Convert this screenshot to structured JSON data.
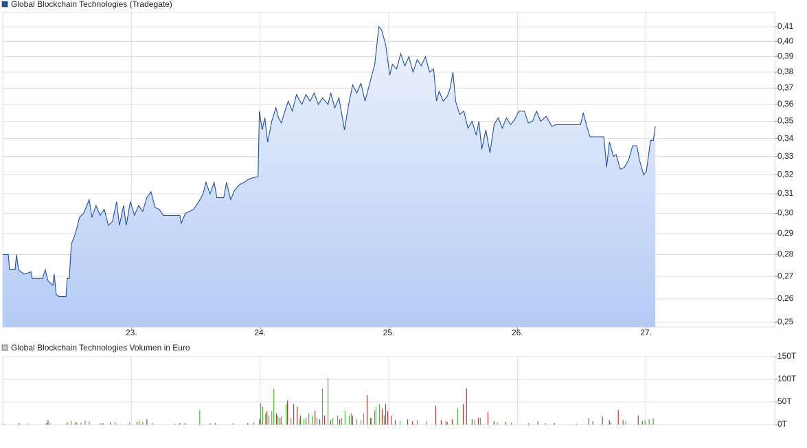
{
  "chart_data": [
    {
      "type": "line",
      "title": "Global Blockchain Technologies (Tradegate)",
      "log": true,
      "grid": true,
      "color": "#1f4fa8",
      "fill_top": "#eef3fd",
      "fill_bottom": "#b4cbf5",
      "xlim": [
        22,
        28
      ],
      "xticks": [
        {
          "value": 23,
          "label": "23."
        },
        {
          "value": 24,
          "label": "24."
        },
        {
          "value": 25,
          "label": "25."
        },
        {
          "value": 26,
          "label": "26."
        },
        {
          "value": 27,
          "label": "27."
        }
      ],
      "ylim": [
        0.248,
        0.42
      ],
      "yticks": [
        {
          "value": 0.25,
          "label": "0,25"
        },
        {
          "value": 0.26,
          "label": "0,26"
        },
        {
          "value": 0.27,
          "label": "0,27"
        },
        {
          "value": 0.28,
          "label": "0,28"
        },
        {
          "value": 0.29,
          "label": "0,29"
        },
        {
          "value": 0.3,
          "label": "0,30"
        },
        {
          "value": 0.31,
          "label": "0,31"
        },
        {
          "value": 0.32,
          "label": "0,32"
        },
        {
          "value": 0.33,
          "label": "0,33"
        },
        {
          "value": 0.34,
          "label": "0,34"
        },
        {
          "value": 0.35,
          "label": "0,35"
        },
        {
          "value": 0.36,
          "label": "0,36"
        },
        {
          "value": 0.37,
          "label": "0,37"
        },
        {
          "value": 0.38,
          "label": "0,38"
        },
        {
          "value": 0.39,
          "label": "0,39"
        },
        {
          "value": 0.4,
          "label": "0,40"
        },
        {
          "value": 0.41,
          "label": "0,41"
        }
      ],
      "series": [
        {
          "x": [
            22.0,
            22.043,
            22.053,
            22.096,
            22.107,
            22.123,
            22.165,
            22.219,
            22.229,
            22.309,
            22.331,
            22.352,
            22.389,
            22.4,
            22.416,
            22.437,
            22.491,
            22.501,
            22.517,
            22.533,
            22.565,
            22.597,
            22.629,
            22.672,
            22.693,
            22.725,
            22.757,
            22.789,
            22.821,
            22.853,
            22.885,
            22.907,
            22.939,
            22.96,
            22.992,
            23.024,
            23.056,
            23.088,
            23.12,
            23.152,
            23.184,
            23.216,
            23.248,
            23.312,
            23.376,
            23.387,
            23.419,
            23.451,
            23.483,
            23.525,
            23.557,
            23.579,
            23.611,
            23.643,
            23.664,
            23.717,
            23.739,
            23.771,
            23.803,
            23.845,
            23.877,
            23.92,
            23.984,
            23.995,
            24.016,
            24.037,
            24.059,
            24.091,
            24.123,
            24.144,
            24.165,
            24.197,
            24.219,
            24.251,
            24.283,
            24.325,
            24.357,
            24.389,
            24.421,
            24.453,
            24.485,
            24.528,
            24.549,
            24.581,
            24.613,
            24.656,
            24.688,
            24.72,
            24.752,
            24.784,
            24.816,
            24.859,
            24.891,
            24.923,
            24.944,
            24.976,
            25.008,
            25.029,
            25.061,
            25.093,
            25.125,
            25.157,
            25.189,
            25.221,
            25.253,
            25.285,
            25.317,
            25.349,
            25.371,
            25.392,
            25.424,
            25.456,
            25.477,
            25.499,
            25.52,
            25.552,
            25.584,
            25.616,
            25.648,
            25.68,
            25.701,
            25.723,
            25.755,
            25.787,
            25.819,
            25.851,
            25.883,
            25.915,
            25.947,
            25.979,
            26.011,
            26.053,
            26.085,
            26.117,
            26.149,
            26.181,
            26.224,
            26.267,
            26.299,
            26.491,
            26.512,
            26.544,
            26.565,
            26.672,
            26.693,
            26.715,
            26.747,
            26.768,
            26.8,
            26.832,
            26.864,
            26.896,
            26.928,
            26.949,
            26.981,
            27.003,
            27.035,
            27.056,
            27.072
          ],
          "values": [
            0.28,
            0.28,
            0.273,
            0.273,
            0.28,
            0.273,
            0.271,
            0.272,
            0.269,
            0.269,
            0.273,
            0.268,
            0.266,
            0.271,
            0.262,
            0.261,
            0.261,
            0.269,
            0.269,
            0.285,
            0.29,
            0.298,
            0.3,
            0.307,
            0.298,
            0.304,
            0.299,
            0.302,
            0.294,
            0.296,
            0.306,
            0.294,
            0.304,
            0.294,
            0.306,
            0.299,
            0.304,
            0.301,
            0.308,
            0.311,
            0.303,
            0.302,
            0.299,
            0.299,
            0.299,
            0.295,
            0.3,
            0.301,
            0.302,
            0.306,
            0.31,
            0.316,
            0.31,
            0.316,
            0.308,
            0.308,
            0.316,
            0.307,
            0.312,
            0.315,
            0.316,
            0.318,
            0.319,
            0.356,
            0.345,
            0.352,
            0.338,
            0.35,
            0.358,
            0.352,
            0.349,
            0.357,
            0.362,
            0.356,
            0.366,
            0.36,
            0.366,
            0.362,
            0.367,
            0.36,
            0.364,
            0.36,
            0.367,
            0.358,
            0.364,
            0.345,
            0.36,
            0.372,
            0.367,
            0.373,
            0.362,
            0.375,
            0.385,
            0.41,
            0.408,
            0.398,
            0.378,
            0.385,
            0.382,
            0.392,
            0.384,
            0.39,
            0.38,
            0.388,
            0.384,
            0.39,
            0.38,
            0.382,
            0.362,
            0.368,
            0.362,
            0.365,
            0.37,
            0.38,
            0.362,
            0.354,
            0.356,
            0.346,
            0.35,
            0.342,
            0.35,
            0.334,
            0.345,
            0.332,
            0.348,
            0.352,
            0.346,
            0.352,
            0.348,
            0.351,
            0.356,
            0.356,
            0.349,
            0.35,
            0.356,
            0.35,
            0.353,
            0.347,
            0.348,
            0.348,
            0.355,
            0.346,
            0.341,
            0.341,
            0.324,
            0.338,
            0.33,
            0.331,
            0.323,
            0.324,
            0.328,
            0.336,
            0.336,
            0.328,
            0.32,
            0.322,
            0.339,
            0.339,
            0.347
          ]
        }
      ]
    },
    {
      "type": "bar",
      "title": "Global Blockchain Technologies Volumen in Euro",
      "grid": true,
      "xlim": [
        22,
        28
      ],
      "ylim": [
        0,
        150000
      ],
      "yticks": [
        {
          "value": 0,
          "label": "0T"
        },
        {
          "value": 50000,
          "label": "50T"
        },
        {
          "value": 100000,
          "label": "100T"
        },
        {
          "value": 150000,
          "label": "150T"
        }
      ],
      "series": [
        {
          "color": "#44bb33",
          "x": [
            22.005,
            22.192,
            22.368,
            22.533,
            22.565,
            22.608,
            22.64,
            22.672,
            22.757,
            22.875,
            22.987,
            23.061,
            23.088,
            23.163,
            23.339,
            23.531,
            23.611,
            23.792,
            23.952,
            24.005,
            24.021,
            24.043,
            24.069,
            24.091,
            24.107,
            24.139,
            24.165,
            24.203,
            24.24,
            24.309,
            24.341,
            24.379,
            24.405,
            24.443,
            24.485,
            24.528,
            24.565,
            24.603,
            24.635,
            24.661,
            24.693,
            24.709,
            24.752,
            24.784,
            24.805,
            24.864,
            24.891,
            24.901,
            24.928,
            24.965,
            25.088,
            25.221,
            25.296,
            25.456,
            25.536,
            25.669,
            25.712,
            25.845,
            25.952,
            26.085,
            26.219,
            26.459,
            26.725,
            26.843,
            26.992,
            27.024,
            27.056
          ],
          "values": [
            2000,
            2000,
            3000,
            8000,
            6000,
            5000,
            9000,
            7000,
            3000,
            6000,
            5000,
            9000,
            6000,
            3000,
            2000,
            32000,
            3000,
            3000,
            5000,
            47000,
            40000,
            25000,
            20000,
            30000,
            79000,
            20000,
            18000,
            45000,
            15000,
            12000,
            12000,
            25000,
            20000,
            15000,
            79000,
            103000,
            15000,
            20000,
            15000,
            30000,
            20000,
            25000,
            12000,
            10000,
            25000,
            15000,
            30000,
            40000,
            45000,
            20000,
            8000,
            10000,
            8000,
            6000,
            35000,
            10000,
            15000,
            5000,
            5000,
            3000,
            3000,
            2000,
            5000,
            8000,
            10000,
            12000,
            14000
          ]
        },
        {
          "color": "#cc3333",
          "x": [
            22.128,
            22.341,
            22.352,
            22.501,
            22.576,
            22.779,
            22.837,
            23.045,
            23.12,
            23.376,
            23.419,
            23.653,
            23.904,
            23.995,
            24.053,
            24.128,
            24.155,
            24.213,
            24.261,
            24.288,
            24.315,
            24.357,
            24.427,
            24.464,
            24.501,
            24.549,
            24.619,
            24.72,
            24.832,
            24.859,
            24.949,
            24.976,
            24.992,
            25.019,
            25.051,
            25.147,
            25.184,
            25.365,
            25.408,
            25.445,
            25.493,
            25.579,
            25.605,
            25.648,
            25.696,
            25.771,
            25.819,
            25.909,
            26.16,
            26.288,
            26.555,
            26.587,
            26.661,
            26.715,
            26.784,
            26.821,
            26.939,
            26.971
          ],
          "values": [
            3000,
            3000,
            10000,
            5000,
            4000,
            3000,
            5000,
            6000,
            12000,
            3000,
            3000,
            3000,
            3000,
            12000,
            30000,
            25000,
            15000,
            53000,
            45000,
            40000,
            20000,
            15000,
            30000,
            12000,
            20000,
            10000,
            12000,
            20000,
            65000,
            15000,
            35000,
            45000,
            30000,
            20000,
            10000,
            12000,
            8000,
            42000,
            10000,
            8000,
            12000,
            45000,
            80000,
            12000,
            15000,
            28000,
            8000,
            6000,
            8000,
            3000,
            15000,
            8000,
            18000,
            10000,
            32000,
            10000,
            20000,
            8000
          ]
        }
      ]
    }
  ]
}
